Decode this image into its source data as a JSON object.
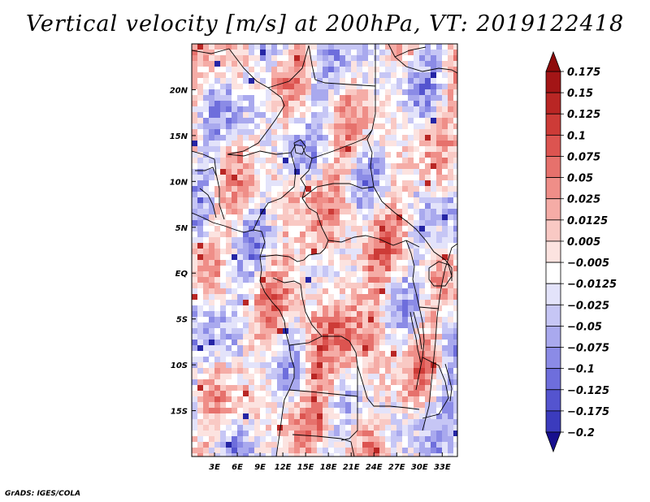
{
  "title": "Vertical velocity [m/s] at 200hPa, VT: 2019122418",
  "credit": "GrADS: IGES/COLA",
  "map": {
    "lon_range": [
      0,
      35
    ],
    "lat_range": [
      -20,
      25
    ],
    "lat_ticks": [
      {
        "value": 20,
        "label": "20N"
      },
      {
        "value": 15,
        "label": "15N"
      },
      {
        "value": 10,
        "label": "10N"
      },
      {
        "value": 5,
        "label": "5N"
      },
      {
        "value": 0,
        "label": "EQ"
      },
      {
        "value": -5,
        "label": "5S"
      },
      {
        "value": -10,
        "label": "10S"
      },
      {
        "value": -15,
        "label": "15S"
      }
    ],
    "lon_ticks": [
      {
        "value": 3,
        "label": "3E"
      },
      {
        "value": 6,
        "label": "6E"
      },
      {
        "value": 9,
        "label": "9E"
      },
      {
        "value": 12,
        "label": "12E"
      },
      {
        "value": 15,
        "label": "15E"
      },
      {
        "value": 18,
        "label": "18E"
      },
      {
        "value": 21,
        "label": "21E"
      },
      {
        "value": 24,
        "label": "24E"
      },
      {
        "value": 27,
        "label": "27E"
      },
      {
        "value": 30,
        "label": "30E"
      },
      {
        "value": 33,
        "label": "33E"
      }
    ]
  },
  "colorbar": {
    "levels": [
      {
        "label": "0.175",
        "color": "#a31516"
      },
      {
        "label": "0.15",
        "color": "#b92624"
      },
      {
        "label": "0.125",
        "color": "#cd3b37"
      },
      {
        "label": "0.1",
        "color": "#dc5450"
      },
      {
        "label": "0.075",
        "color": "#e6716c"
      },
      {
        "label": "0.05",
        "color": "#ef8e88"
      },
      {
        "label": "0.025",
        "color": "#f5aca6"
      },
      {
        "label": "0.0125",
        "color": "#f9c9c4"
      },
      {
        "label": "0.005",
        "color": "#fce3e0"
      },
      {
        "label": "−0.005",
        "color": "#ffffff"
      },
      {
        "label": "−0.0125",
        "color": "#e3e3fa"
      },
      {
        "label": "−0.025",
        "color": "#c6c6f5"
      },
      {
        "label": "−0.05",
        "color": "#a9a9ee"
      },
      {
        "label": "−0.075",
        "color": "#8b8be6"
      },
      {
        "label": "−0.1",
        "color": "#6e6edc"
      },
      {
        "label": "−0.125",
        "color": "#5454cf"
      },
      {
        "label": "−0.175",
        "color": "#3b3bbd"
      },
      {
        "label": "−0.2",
        "color": "#2525a5"
      }
    ],
    "top_arrow_color": "#8e0b0b",
    "bottom_arrow_color": "#170f8e"
  }
}
